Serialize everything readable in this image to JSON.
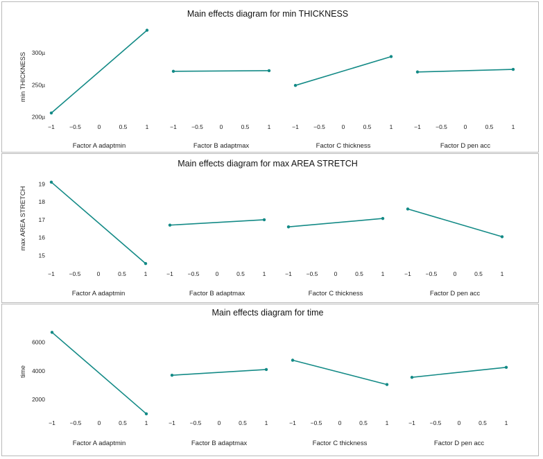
{
  "chart_data": [
    {
      "type": "line",
      "title": "Main effects diagram for min THICKNESS",
      "ylabel": "min THICKNESS",
      "y_ticks": [
        {
          "value": 200,
          "label": "200µ"
        },
        {
          "value": 250,
          "label": "250µ"
        },
        {
          "value": 300,
          "label": "300µ"
        }
      ],
      "ylim": [
        193,
        340
      ],
      "x_ticks": [
        "−1",
        "−0.5",
        "0",
        "0.5",
        "1"
      ],
      "xlim": [
        -1,
        1
      ],
      "color": "#138a86",
      "subplots": [
        {
          "xlabel": "Factor A adaptmin",
          "x": [
            -1,
            1
          ],
          "y": [
            206,
            335
          ]
        },
        {
          "xlabel": "Factor B adaptmax",
          "x": [
            -1,
            1
          ],
          "y": [
            271,
            272
          ]
        },
        {
          "xlabel": "Factor C thickness",
          "x": [
            -1,
            1
          ],
          "y": [
            249,
            294
          ]
        },
        {
          "xlabel": "Factor D pen acc",
          "x": [
            -1,
            1
          ],
          "y": [
            270,
            274
          ]
        }
      ]
    },
    {
      "type": "line",
      "title": "Main effects diagram for max AREA STRETCH",
      "ylabel": "max AREA STRETCH",
      "y_ticks": [
        {
          "value": 15,
          "label": "15"
        },
        {
          "value": 16,
          "label": "16"
        },
        {
          "value": 17,
          "label": "17"
        },
        {
          "value": 18,
          "label": "18"
        },
        {
          "value": 19,
          "label": "19"
        }
      ],
      "ylim": [
        14.4,
        19.4
      ],
      "x_ticks": [
        "−1",
        "−0.5",
        "0",
        "0.5",
        "1"
      ],
      "xlim": [
        -1,
        1
      ],
      "color": "#138a86",
      "subplots": [
        {
          "xlabel": "Factor A adaptmin",
          "x": [
            -1,
            1
          ],
          "y": [
            19.1,
            14.55
          ]
        },
        {
          "xlabel": "Factor B adaptmax",
          "x": [
            -1,
            1
          ],
          "y": [
            16.7,
            17.0
          ]
        },
        {
          "xlabel": "Factor C thickness",
          "x": [
            -1,
            1
          ],
          "y": [
            16.6,
            17.07
          ]
        },
        {
          "xlabel": "Factor D pen acc",
          "x": [
            -1,
            1
          ],
          "y": [
            17.6,
            16.05
          ]
        }
      ]
    },
    {
      "type": "line",
      "title": "Main effects diagram for time",
      "ylabel": "time",
      "y_ticks": [
        {
          "value": 2000,
          "label": "2000"
        },
        {
          "value": 4000,
          "label": "4000"
        },
        {
          "value": 6000,
          "label": "6000"
        }
      ],
      "ylim": [
        700,
        7200
      ],
      "x_ticks": [
        "−1",
        "−0.5",
        "0",
        "0.5",
        "1"
      ],
      "xlim": [
        -1,
        1
      ],
      "color": "#138a86",
      "subplots": [
        {
          "xlabel": "Factor A adaptmin",
          "x": [
            -1,
            1
          ],
          "y": [
            6700,
            1000
          ]
        },
        {
          "xlabel": "Factor B adaptmax",
          "x": [
            -1,
            1
          ],
          "y": [
            3700,
            4100
          ]
        },
        {
          "xlabel": "Factor C thickness",
          "x": [
            -1,
            1
          ],
          "y": [
            4750,
            3050
          ]
        },
        {
          "xlabel": "Factor D pen acc",
          "x": [
            -1,
            1
          ],
          "y": [
            3550,
            4250
          ]
        }
      ]
    }
  ]
}
